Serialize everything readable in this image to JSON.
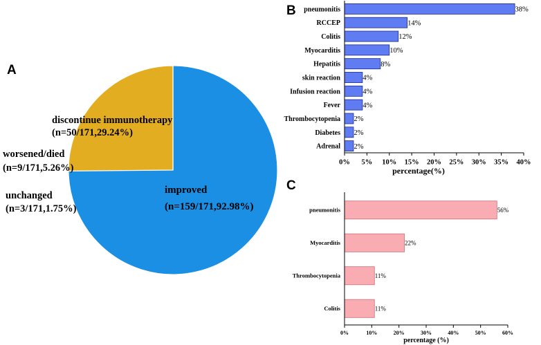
{
  "chart_data": [
    {
      "id": "A",
      "type": "pie",
      "panel_label": "A",
      "slices": [
        {
          "name": "improved",
          "detail": "(n=159/171,92.98%)",
          "value": 159,
          "percent": 92.98,
          "color": "#1a8fe3"
        },
        {
          "name": "unchanged",
          "detail": "(n=3/171,1.75%)",
          "value": 3,
          "percent": 1.75,
          "color": "#1ab98a"
        },
        {
          "name": "worsened/died",
          "detail": "(n=9/171,5.26%)",
          "value": 9,
          "percent": 5.26,
          "color": "#d59ae8"
        },
        {
          "name": "discontinue immunotherapy",
          "detail": "(n=50/171,29.24%)",
          "value": 50,
          "percent": 29.24,
          "color": "#e3ad21"
        }
      ]
    },
    {
      "id": "B",
      "type": "bar",
      "orientation": "horizontal",
      "panel_label": "B",
      "categories": [
        "pneumonitis",
        "RCCEP",
        "Colitis",
        "Myocarditis",
        "Hepatitis",
        "skin reaction",
        "Infusion reaction",
        "Fever",
        "Thrombocytopenia",
        "Diabetes",
        "Adrenal"
      ],
      "values": [
        38,
        14,
        12,
        10,
        8,
        4,
        4,
        4,
        2,
        2,
        2
      ],
      "labels": [
        "38%",
        "14%",
        "12%",
        "10%",
        "8%",
        "4%",
        "4%",
        "4%",
        "2%",
        "2%",
        "2%"
      ],
      "xlabel": "percentage(%)",
      "xlim": [
        0,
        40
      ],
      "xticks": [
        "0%",
        "5%",
        "10%",
        "15%",
        "20%",
        "25%",
        "30%",
        "35%",
        "40%"
      ],
      "color": "#5f7cf2",
      "edge_color": "#1b2a8a"
    },
    {
      "id": "C",
      "type": "bar",
      "orientation": "horizontal",
      "panel_label": "C",
      "categories": [
        "pneumonitis",
        "Myocarditis",
        "Thrombocytopenia",
        "Colitis"
      ],
      "values": [
        56,
        22,
        11,
        11
      ],
      "labels": [
        "56%",
        "22%",
        "11%",
        "11%"
      ],
      "xlabel": "percentage (%)",
      "xlim": [
        0,
        60
      ],
      "xticks": [
        "0%",
        "10%",
        "20%",
        "30%",
        "40%",
        "50%",
        "60%"
      ],
      "color": "#f9acb2",
      "edge_color": "#c8707a"
    }
  ]
}
